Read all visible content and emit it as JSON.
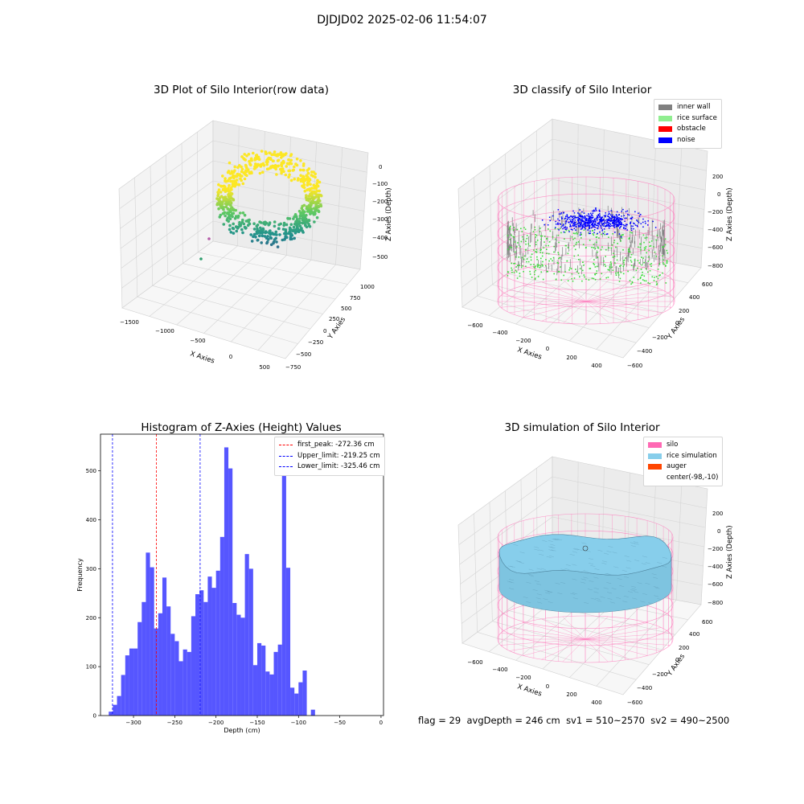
{
  "figure_title": "DJDJD02 2025-02-06 11:54:07",
  "footer": {
    "flag": "flag = 29",
    "avg_depth": "avgDepth = 246 cm",
    "sv1": "sv1 = 510~2570",
    "sv2": "sv2 = 490~2500"
  },
  "colors": {
    "inner_wall": "#808080",
    "rice_surface": "#90ee90",
    "obstacle": "#ff0000",
    "noise": "#0000ff",
    "silo": "#ff69b4",
    "rice_simulation": "#87ceeb",
    "auger": "#ff4500",
    "hist_bar": "#4d4dff"
  },
  "chart_data": [
    {
      "type": "scatter",
      "panel": "raw",
      "title": "3D Plot of Silo Interior(row data)",
      "xlabel": "X Axies",
      "ylabel": "Y Axies",
      "zlabel": "Z Axies (Depth)",
      "x_ticks": [
        "−1500",
        "−1000",
        "−500",
        "0",
        "500"
      ],
      "y_ticks": [
        "−750",
        "−500",
        "−250",
        "0",
        "250",
        "500",
        "750",
        "1000"
      ],
      "z_ticks": [
        "−500",
        "−400",
        "−300",
        "−200",
        "−100",
        "0"
      ],
      "colormap": "viridis"
    },
    {
      "type": "scatter",
      "panel": "classify",
      "title": "3D classify of Silo Interior",
      "xlabel": "X Axies",
      "ylabel": "Y Axies",
      "zlabel": "Z Axies (Depth)",
      "x_ticks": [
        "−600",
        "−400",
        "−200",
        "0",
        "200",
        "400"
      ],
      "y_ticks": [
        "−600",
        "−400",
        "−200",
        "0",
        "200",
        "400",
        "600"
      ],
      "z_ticks": [
        "−800",
        "−600",
        "−400",
        "−200",
        "0",
        "200"
      ],
      "legend": [
        "inner wall",
        "rice surface",
        "obstacle",
        "noise"
      ]
    },
    {
      "type": "bar",
      "panel": "histogram",
      "title": "Histogram of Z-Axies (Height) Values",
      "xlabel": "Depth (cm)",
      "ylabel": "Frequency",
      "xlim": [
        -340,
        3
      ],
      "ylim": [
        0,
        575
      ],
      "bin_width": 5,
      "bin_start": -330,
      "values": [
        8,
        22,
        40,
        83,
        123,
        137,
        137,
        191,
        232,
        333,
        303,
        178,
        209,
        282,
        223,
        167,
        152,
        111,
        135,
        130,
        203,
        248,
        256,
        232,
        284,
        261,
        296,
        365,
        548,
        505,
        230,
        206,
        200,
        330,
        300,
        103,
        148,
        143,
        90,
        84,
        130,
        145,
        505,
        302,
        57,
        45,
        68,
        92,
        0,
        12
      ],
      "x_ticks": [
        "−300",
        "−250",
        "−200",
        "−150",
        "−100",
        "−50",
        "0"
      ],
      "y_ticks": [
        "0",
        "100",
        "200",
        "300",
        "400",
        "500"
      ],
      "x_tick_values": [
        -300,
        -250,
        -200,
        -150,
        -100,
        -50,
        0
      ],
      "y_tick_values": [
        0,
        100,
        200,
        300,
        400,
        500
      ],
      "lines": [
        {
          "label": "first_peak: -272.36 cm",
          "value": -272.36,
          "color": "#ff0000"
        },
        {
          "label": "Upper_limit: -219.25 cm",
          "value": -219.25,
          "color": "#0000ff"
        },
        {
          "label": "Lower_limit: -325.46 cm",
          "value": -325.46,
          "color": "#0000ff"
        }
      ]
    },
    {
      "type": "surface",
      "panel": "simulation",
      "title": "3D simulation of Silo Interior",
      "xlabel": "X Axies",
      "ylabel": "Y Axies",
      "zlabel": "Z Axies (Depth)",
      "x_ticks": [
        "−600",
        "−400",
        "−200",
        "0",
        "200",
        "400"
      ],
      "y_ticks": [
        "−600",
        "−400",
        "−200",
        "0",
        "200",
        "400",
        "600"
      ],
      "z_ticks": [
        "−800",
        "−600",
        "−400",
        "−200",
        "0",
        "200"
      ],
      "legend": [
        "silo",
        "rice simulation",
        "auger",
        "center(-98,-10)"
      ]
    }
  ]
}
